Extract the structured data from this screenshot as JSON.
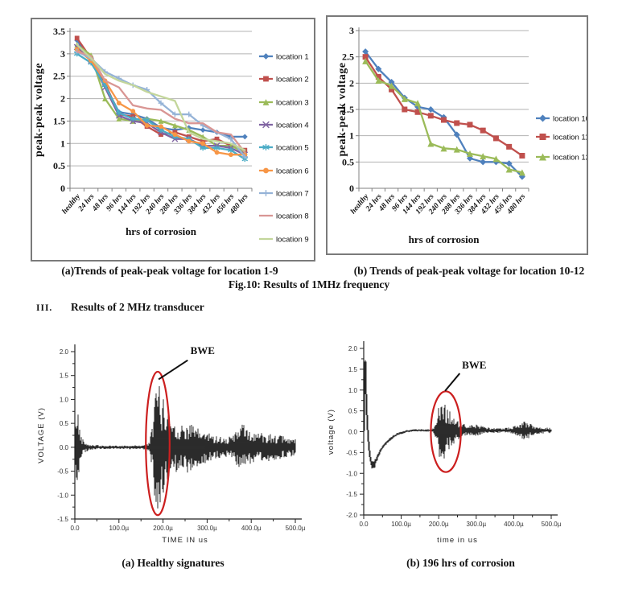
{
  "figure10": {
    "caption_a": "(a)Trends of peak-peak voltage for location 1-9",
    "caption_b": "(b) Trends of peak-peak voltage for location 10-12",
    "caption_main": "Fig.10: Results of 1MHz frequency"
  },
  "section_heading": {
    "numeral": "III.",
    "text": "Results of 2 MHz transducer"
  },
  "figure11": {
    "caption_a": "(a) Healthy signatures",
    "caption_b": "(b) 196 hrs of corrosion"
  },
  "chart_data": [
    {
      "id": "fig10a",
      "type": "line",
      "title": "",
      "xlabel": "hrs of corrosion",
      "ylabel": "peak-peak voltage",
      "ylim": [
        0,
        3.5
      ],
      "ytick_step": 0.5,
      "grid": true,
      "legend_position": "right",
      "categories": [
        "healthy",
        "24 hrs",
        "48 hrs",
        "96 hrs",
        "144 hrs",
        "192 hrs",
        "240 hrs",
        "288 hrs",
        "336 hrs",
        "384 hrs",
        "432 hrs",
        "456 hrs",
        "480 hrs"
      ],
      "series": [
        {
          "name": "location 1",
          "color": "#4F81BD",
          "marker": "diamond",
          "values": [
            3.3,
            2.85,
            2.3,
            1.7,
            1.65,
            1.55,
            1.35,
            1.3,
            1.35,
            1.3,
            1.25,
            1.15,
            1.15
          ]
        },
        {
          "name": "location 2",
          "color": "#C0504D",
          "marker": "square",
          "values": [
            3.35,
            2.9,
            2.35,
            1.65,
            1.6,
            1.38,
            1.2,
            1.25,
            1.15,
            1.05,
            1.1,
            0.95,
            0.85
          ]
        },
        {
          "name": "location 3",
          "color": "#9BBB59",
          "marker": "triangle",
          "values": [
            3.2,
            2.97,
            2.0,
            1.55,
            1.5,
            1.55,
            1.5,
            1.4,
            1.3,
            1.15,
            0.95,
            0.95,
            0.8
          ]
        },
        {
          "name": "location 4",
          "color": "#8064A2",
          "marker": "x",
          "values": [
            3.15,
            2.85,
            2.25,
            1.62,
            1.5,
            1.45,
            1.25,
            1.1,
            1.1,
            0.95,
            0.95,
            0.9,
            0.75
          ]
        },
        {
          "name": "location 5",
          "color": "#4BACC6",
          "marker": "asterisk",
          "values": [
            3.0,
            2.8,
            2.3,
            1.68,
            1.55,
            1.52,
            1.3,
            1.15,
            1.1,
            0.9,
            0.9,
            0.85,
            0.65
          ]
        },
        {
          "name": "location 6",
          "color": "#F79646",
          "marker": "circle",
          "values": [
            3.1,
            2.85,
            2.4,
            1.9,
            1.72,
            1.4,
            1.38,
            1.2,
            1.05,
            1.0,
            0.8,
            0.75,
            0.75
          ]
        },
        {
          "name": "location 7",
          "color": "#95B3D7",
          "marker": "plus",
          "values": [
            3.05,
            2.9,
            2.6,
            2.45,
            2.3,
            2.2,
            1.9,
            1.65,
            1.65,
            1.4,
            1.25,
            1.1,
            0.7
          ]
        },
        {
          "name": "location 8",
          "color": "#D99694",
          "marker": "none",
          "values": [
            3.05,
            2.95,
            2.4,
            2.25,
            1.85,
            1.78,
            1.75,
            1.55,
            1.45,
            1.45,
            1.25,
            1.2,
            0.8
          ]
        },
        {
          "name": "location 9",
          "color": "#C3D69B",
          "marker": "none",
          "values": [
            3.2,
            2.9,
            2.55,
            2.4,
            2.3,
            2.15,
            2.05,
            1.95,
            1.25,
            1.1,
            1.05,
            1.0,
            0.85
          ]
        }
      ]
    },
    {
      "id": "fig10b",
      "type": "line",
      "title": "",
      "xlabel": "hrs of corrosion",
      "ylabel": "peak-peak voltage",
      "ylim": [
        0,
        3
      ],
      "ytick_step": 0.5,
      "grid": true,
      "legend_position": "right",
      "categories": [
        "healthy",
        "24 hrs",
        "48 hrs",
        "96 hrs",
        "144 hrs",
        "192 hrs",
        "240 hrs",
        "288 hrs",
        "336 hrs",
        "384 hrs",
        "432 hrs",
        "456 hrs",
        "480 hrs"
      ],
      "series": [
        {
          "name": "location 10",
          "color": "#4F81BD",
          "marker": "diamond",
          "values": [
            2.6,
            2.27,
            2.02,
            1.72,
            1.55,
            1.5,
            1.35,
            1.02,
            0.57,
            0.5,
            0.5,
            0.47,
            0.22
          ]
        },
        {
          "name": "location 11",
          "color": "#C0504D",
          "marker": "square",
          "values": [
            2.5,
            2.12,
            1.88,
            1.5,
            1.45,
            1.38,
            1.3,
            1.24,
            1.21,
            1.1,
            0.95,
            0.79,
            0.62
          ]
        },
        {
          "name": "location 12",
          "color": "#9BBB59",
          "marker": "triangle",
          "values": [
            2.42,
            2.05,
            1.95,
            1.7,
            1.62,
            0.85,
            0.76,
            0.74,
            0.66,
            0.61,
            0.56,
            0.36,
            0.3
          ]
        }
      ]
    },
    {
      "id": "fig11a",
      "type": "line",
      "subtype": "waveform",
      "xlabel": "TIME IN us",
      "ylabel": "VOLTAGE (V)",
      "xlim_us": [
        0,
        500
      ],
      "ylim": [
        -1.5,
        2.0
      ],
      "ytick_step": 0.5,
      "xticks": [
        {
          "t": 0,
          "label": "0.0"
        },
        {
          "t": 100,
          "label": "100.0µ"
        },
        {
          "t": 200,
          "label": "200.0µ"
        },
        {
          "t": 300,
          "label": "300.0µ"
        },
        {
          "t": 400,
          "label": "400.0µ"
        },
        {
          "t": 500,
          "label": "500.0µ"
        }
      ],
      "annotation": {
        "label": "BWE",
        "label_t": 262,
        "label_v": 1.95,
        "arrow": [
          [
            256,
            1.82
          ],
          [
            190,
            1.42
          ]
        ],
        "ellipse": {
          "t": 188,
          "v": 0.08,
          "rt": 27,
          "rv": 1.5
        },
        "color": "#CC1F1F"
      },
      "signal": {
        "baseline": [
          [
            0,
            0
          ],
          [
            500,
            0
          ]
        ],
        "envelope": [
          [
            0,
            0.03
          ],
          [
            2,
            0.5
          ],
          [
            4,
            1.0
          ],
          [
            6,
            0.85
          ],
          [
            9,
            0.55
          ],
          [
            13,
            0.3
          ],
          [
            18,
            0.18
          ],
          [
            25,
            0.1
          ],
          [
            35,
            0.06
          ],
          [
            60,
            0.035
          ],
          [
            110,
            0.035
          ],
          [
            150,
            0.045
          ],
          [
            163,
            0.05
          ],
          [
            170,
            0.12
          ],
          [
            176,
            0.5
          ],
          [
            182,
            1.1
          ],
          [
            187,
            1.35
          ],
          [
            193,
            1.25
          ],
          [
            200,
            1.0
          ],
          [
            210,
            0.8
          ],
          [
            220,
            0.62
          ],
          [
            231,
            0.5
          ],
          [
            243,
            0.44
          ],
          [
            257,
            0.52
          ],
          [
            270,
            0.42
          ],
          [
            283,
            0.36
          ],
          [
            297,
            0.32
          ],
          [
            312,
            0.27
          ],
          [
            327,
            0.23
          ],
          [
            342,
            0.2
          ],
          [
            355,
            0.22
          ],
          [
            365,
            0.33
          ],
          [
            374,
            0.5
          ],
          [
            383,
            0.46
          ],
          [
            392,
            0.36
          ],
          [
            403,
            0.3
          ],
          [
            418,
            0.3
          ],
          [
            432,
            0.31
          ],
          [
            447,
            0.27
          ],
          [
            462,
            0.24
          ],
          [
            478,
            0.21
          ],
          [
            500,
            0.17
          ]
        ]
      }
    },
    {
      "id": "fig11b",
      "type": "line",
      "subtype": "waveform",
      "xlabel": "time in us",
      "ylabel": "voltage (V)",
      "xlim_us": [
        0,
        500
      ],
      "ylim": [
        -2.0,
        2.0
      ],
      "ytick_step": 0.5,
      "xticks": [
        {
          "t": 0,
          "label": "0.0"
        },
        {
          "t": 100,
          "label": "100.0µ"
        },
        {
          "t": 200,
          "label": "200.0µ"
        },
        {
          "t": 300,
          "label": "300.0µ"
        },
        {
          "t": 400,
          "label": "400.0µ"
        },
        {
          "t": 500,
          "label": "500.0µ"
        }
      ],
      "annotation": {
        "label": "BWE",
        "label_t": 262,
        "label_v": 1.52,
        "arrow": [
          [
            256,
            1.4
          ],
          [
            217,
            0.98
          ]
        ],
        "ellipse": {
          "t": 219,
          "v": 0.0,
          "rt": 40,
          "rv": 0.97
        },
        "color": "#CC1F1F"
      },
      "signal": {
        "baseline": [
          [
            0,
            0.02
          ],
          [
            2,
            1.2
          ],
          [
            3,
            2.0
          ],
          [
            4,
            1.8
          ],
          [
            6,
            1.0
          ],
          [
            9,
            0.3
          ],
          [
            12,
            -0.15
          ],
          [
            16,
            -0.55
          ],
          [
            20,
            -0.75
          ],
          [
            24,
            -0.83
          ],
          [
            29,
            -0.78
          ],
          [
            36,
            -0.62
          ],
          [
            45,
            -0.45
          ],
          [
            55,
            -0.32
          ],
          [
            67,
            -0.2
          ],
          [
            80,
            -0.11
          ],
          [
            95,
            -0.04
          ],
          [
            110,
            0.0
          ],
          [
            130,
            0.03
          ],
          [
            500,
            0.03
          ]
        ],
        "envelope": [
          [
            0,
            0.02
          ],
          [
            3,
            0.12
          ],
          [
            8,
            0.08
          ],
          [
            15,
            0.07
          ],
          [
            25,
            0.12
          ],
          [
            35,
            0.08
          ],
          [
            45,
            0.05
          ],
          [
            70,
            0.04
          ],
          [
            100,
            0.03
          ],
          [
            150,
            0.03
          ],
          [
            183,
            0.035
          ],
          [
            190,
            0.12
          ],
          [
            196,
            0.4
          ],
          [
            202,
            0.65
          ],
          [
            208,
            0.75
          ],
          [
            214,
            0.68
          ],
          [
            221,
            0.55
          ],
          [
            228,
            0.48
          ],
          [
            236,
            0.35
          ],
          [
            245,
            0.25
          ],
          [
            255,
            0.19
          ],
          [
            266,
            0.15
          ],
          [
            278,
            0.11
          ],
          [
            290,
            0.13
          ],
          [
            300,
            0.15
          ],
          [
            310,
            0.12
          ],
          [
            322,
            0.08
          ],
          [
            340,
            0.06
          ],
          [
            360,
            0.055
          ],
          [
            380,
            0.06
          ],
          [
            395,
            0.08
          ],
          [
            408,
            0.12
          ],
          [
            418,
            0.18
          ],
          [
            428,
            0.22
          ],
          [
            438,
            0.19
          ],
          [
            448,
            0.13
          ],
          [
            460,
            0.09
          ],
          [
            478,
            0.07
          ],
          [
            500,
            0.06
          ]
        ]
      }
    }
  ]
}
